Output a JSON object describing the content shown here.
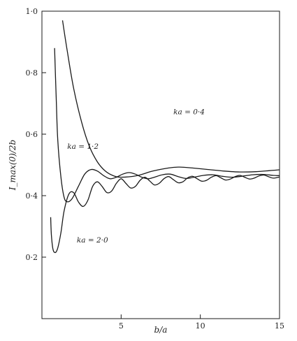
{
  "chart_data": {
    "type": "line",
    "title": "",
    "xlabel": "b/a",
    "ylabel": "I_max(0)/2b",
    "xlim": [
      0,
      15
    ],
    "ylim": [
      0,
      1.0
    ],
    "x_ticks": [
      5,
      10,
      15
    ],
    "x_tick_labels": [
      "5",
      "10",
      "15"
    ],
    "y_ticks": [
      0.2,
      0.4,
      0.6,
      0.8,
      1.0
    ],
    "y_tick_labels": [
      "0·2",
      "0·4",
      "0·6",
      "0·8",
      "1·0"
    ],
    "grid": false,
    "series": [
      {
        "name": "ka = 0·4",
        "points": [
          [
            1.3,
            0.97
          ],
          [
            1.6,
            0.87
          ],
          [
            2.0,
            0.75
          ],
          [
            2.5,
            0.64
          ],
          [
            3.0,
            0.56
          ],
          [
            3.5,
            0.51
          ],
          [
            4.0,
            0.48
          ],
          [
            4.5,
            0.465
          ],
          [
            5.0,
            0.46
          ],
          [
            6.0,
            0.465
          ],
          [
            7.0,
            0.48
          ],
          [
            8.0,
            0.49
          ],
          [
            8.7,
            0.493
          ],
          [
            9.5,
            0.49
          ],
          [
            10.5,
            0.485
          ],
          [
            11.5,
            0.48
          ],
          [
            12.5,
            0.477
          ],
          [
            13.5,
            0.478
          ],
          [
            14.5,
            0.482
          ],
          [
            15.0,
            0.484
          ]
        ]
      },
      {
        "name": "ka = 1·2",
        "points": [
          [
            0.8,
            0.88
          ],
          [
            0.9,
            0.72
          ],
          [
            1.0,
            0.58
          ],
          [
            1.2,
            0.46
          ],
          [
            1.4,
            0.395
          ],
          [
            1.6,
            0.38
          ],
          [
            1.9,
            0.39
          ],
          [
            2.3,
            0.43
          ],
          [
            2.7,
            0.47
          ],
          [
            3.1,
            0.485
          ],
          [
            3.5,
            0.48
          ],
          [
            3.9,
            0.465
          ],
          [
            4.3,
            0.455
          ],
          [
            4.7,
            0.46
          ],
          [
            5.1,
            0.47
          ],
          [
            5.5,
            0.475
          ],
          [
            5.9,
            0.47
          ],
          [
            6.3,
            0.46
          ],
          [
            6.7,
            0.455
          ],
          [
            7.1,
            0.46
          ],
          [
            7.6,
            0.468
          ],
          [
            8.1,
            0.47
          ],
          [
            8.6,
            0.462
          ],
          [
            9.1,
            0.456
          ],
          [
            9.6,
            0.46
          ],
          [
            10.2,
            0.466
          ],
          [
            10.8,
            0.468
          ],
          [
            11.4,
            0.463
          ],
          [
            12.0,
            0.46
          ],
          [
            12.6,
            0.463
          ],
          [
            13.3,
            0.468
          ],
          [
            14.0,
            0.469
          ],
          [
            14.6,
            0.466
          ],
          [
            15.0,
            0.465
          ]
        ]
      },
      {
        "name": "ka = 2·0",
        "points": [
          [
            0.55,
            0.33
          ],
          [
            0.6,
            0.27
          ],
          [
            0.7,
            0.225
          ],
          [
            0.85,
            0.215
          ],
          [
            1.0,
            0.23
          ],
          [
            1.2,
            0.28
          ],
          [
            1.4,
            0.35
          ],
          [
            1.7,
            0.405
          ],
          [
            2.0,
            0.41
          ],
          [
            2.3,
            0.38
          ],
          [
            2.6,
            0.365
          ],
          [
            2.9,
            0.385
          ],
          [
            3.2,
            0.43
          ],
          [
            3.5,
            0.445
          ],
          [
            3.8,
            0.43
          ],
          [
            4.1,
            0.41
          ],
          [
            4.4,
            0.415
          ],
          [
            4.7,
            0.44
          ],
          [
            5.0,
            0.455
          ],
          [
            5.3,
            0.44
          ],
          [
            5.6,
            0.425
          ],
          [
            5.9,
            0.43
          ],
          [
            6.2,
            0.45
          ],
          [
            6.5,
            0.46
          ],
          [
            6.8,
            0.448
          ],
          [
            7.1,
            0.435
          ],
          [
            7.4,
            0.44
          ],
          [
            7.7,
            0.455
          ],
          [
            8.0,
            0.462
          ],
          [
            8.3,
            0.452
          ],
          [
            8.6,
            0.442
          ],
          [
            8.9,
            0.445
          ],
          [
            9.2,
            0.458
          ],
          [
            9.5,
            0.463
          ],
          [
            9.8,
            0.455
          ],
          [
            10.1,
            0.447
          ],
          [
            10.4,
            0.45
          ],
          [
            10.7,
            0.46
          ],
          [
            11.0,
            0.465
          ],
          [
            11.3,
            0.458
          ],
          [
            11.6,
            0.451
          ],
          [
            11.9,
            0.454
          ],
          [
            12.2,
            0.462
          ],
          [
            12.5,
            0.466
          ],
          [
            12.8,
            0.46
          ],
          [
            13.1,
            0.454
          ],
          [
            13.4,
            0.457
          ],
          [
            13.7,
            0.464
          ],
          [
            14.0,
            0.467
          ],
          [
            14.3,
            0.462
          ],
          [
            14.6,
            0.457
          ],
          [
            15.0,
            0.461
          ]
        ]
      }
    ]
  }
}
